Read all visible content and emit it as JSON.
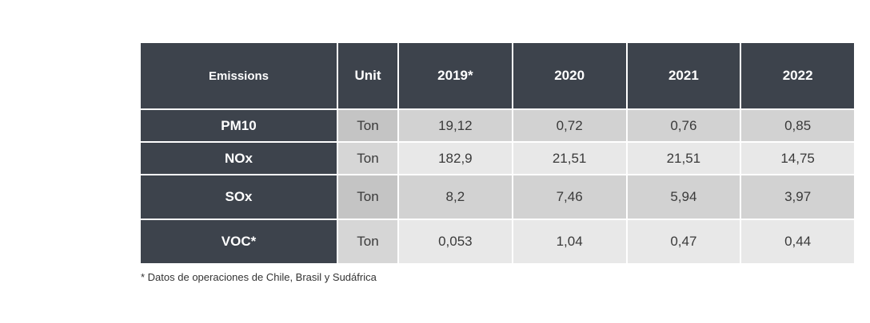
{
  "table": {
    "headers": {
      "emissions": "Emissions",
      "unit": "Unit",
      "years": [
        "2019*",
        "2020",
        "2021",
        "2022"
      ]
    },
    "rows": [
      {
        "name": "PM10",
        "unit": "Ton",
        "values": [
          "19,12",
          "0,72",
          "0,76",
          "0,85"
        ]
      },
      {
        "name": "NOx",
        "unit": "Ton",
        "values": [
          "182,9",
          "21,51",
          "21,51",
          "14,75"
        ]
      },
      {
        "name": "SOx",
        "unit": "Ton",
        "values": [
          "8,2",
          "7,46",
          "5,94",
          "3,97"
        ]
      },
      {
        "name": "VOC*",
        "unit": "Ton",
        "values": [
          "0,053",
          "1,04",
          "0,47",
          "0,44"
        ]
      }
    ]
  },
  "footnote": "* Datos de operaciones de Chile, Brasil y Sudáfrica",
  "colors": {
    "header_bg": "#3d434c",
    "row_dark": "#d2d2d2",
    "row_light": "#e8e8e8"
  }
}
